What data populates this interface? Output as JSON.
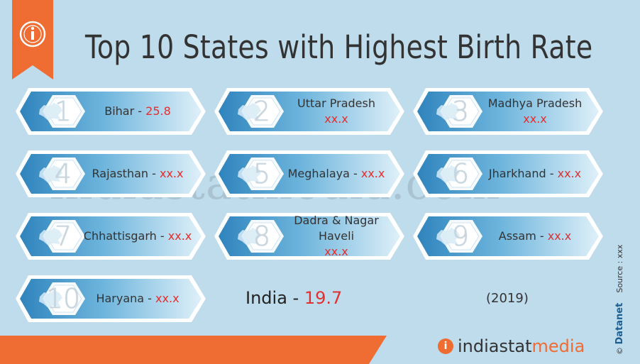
{
  "title": "Top 10 States with Highest Birth Rate",
  "states": [
    {
      "rank": "1",
      "name": "Bihar",
      "value": "25.8"
    },
    {
      "rank": "2",
      "name": "Uttar Pradesh",
      "value": "xx.x"
    },
    {
      "rank": "3",
      "name": "Madhya Pradesh",
      "value": "xx.x"
    },
    {
      "rank": "4",
      "name": "Rajasthan",
      "value": "xx.x"
    },
    {
      "rank": "5",
      "name": "Meghalaya",
      "value": "xx.x"
    },
    {
      "rank": "6",
      "name": "Jharkhand",
      "value": "xx.x"
    },
    {
      "rank": "7",
      "name": "Chhattisgarh",
      "value": "xx.x"
    },
    {
      "rank": "8",
      "name": "Dadra & Nagar Haveli",
      "value": "xx.x"
    },
    {
      "rank": "9",
      "name": "Assam",
      "value": "xx.x"
    },
    {
      "rank": "10",
      "name": "Haryana",
      "value": "xx.x"
    }
  ],
  "national": {
    "name": "India",
    "value": "19.7"
  },
  "year": "(2019)",
  "watermark": "indiastatmedia.com",
  "source": "Source : xxx",
  "credit_brand": "Datanet",
  "credit_prefix": "©",
  "footer_logo": {
    "left": "indiastat",
    "right": "media",
    "glyph": "i"
  },
  "colors": {
    "background": "#bfdcec",
    "accent": "#ef6c33",
    "value_red": "#e22f2f",
    "card_blue": "#3f97c8"
  },
  "icons": {
    "header": "info-icon",
    "state_shape": "state-map-icon"
  }
}
